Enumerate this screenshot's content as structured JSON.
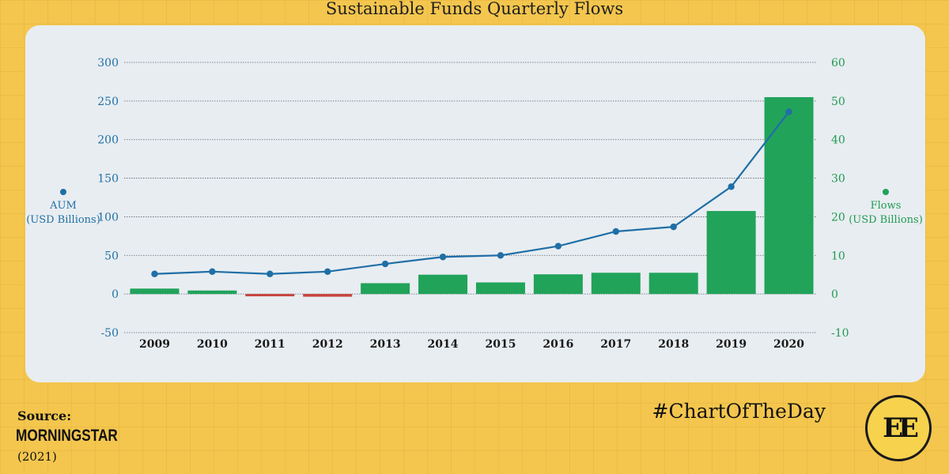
{
  "title": "Sustainable Funds Quarterly Flows",
  "source": {
    "label": "Source:",
    "logo_text": "MORNINGSTAR",
    "year": "(2021)"
  },
  "hashtag": "#ChartOfTheDay",
  "badge_text": "EE",
  "chart_data": {
    "type": "bar",
    "categories": [
      "2009",
      "2010",
      "2011",
      "2012",
      "2013",
      "2014",
      "2015",
      "2016",
      "2017",
      "2018",
      "2019",
      "2020"
    ],
    "series": [
      {
        "name": "Flows",
        "type": "bar",
        "axis": "right",
        "values": [
          1.4,
          0.9,
          -0.6,
          -0.7,
          2.8,
          5.0,
          3.0,
          5.1,
          5.5,
          5.5,
          21.5,
          51.0
        ],
        "positive_color": "#21a35a",
        "negative_color": "#c8453c"
      },
      {
        "name": "AUM",
        "type": "line",
        "axis": "left",
        "values": [
          26,
          29,
          26,
          29,
          39,
          48,
          50,
          62,
          81,
          87,
          139,
          236
        ],
        "color": "#1f6fa6"
      }
    ],
    "y_left": {
      "label_dot_color": "#1f6fa6",
      "label_line1": "AUM",
      "label_line2": "(USD Billions)",
      "ticks": [
        "300",
        "250",
        "200",
        "150",
        "100",
        "50",
        "0",
        "-50"
      ],
      "ylim": [
        -50,
        300
      ]
    },
    "y_right": {
      "label_dot_color": "#21a35a",
      "label_line1": "Flows",
      "label_line2": "(USD Billions)",
      "ticks": [
        "60",
        "50",
        "40",
        "30",
        "20",
        "10",
        "0",
        "-10"
      ],
      "ylim": [
        -10,
        60
      ]
    },
    "grid": true
  }
}
